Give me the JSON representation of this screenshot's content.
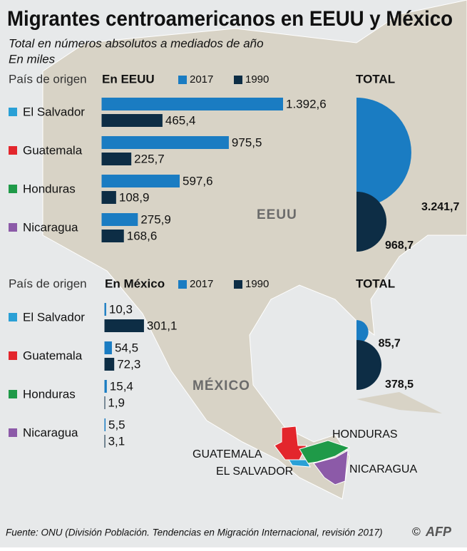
{
  "title": "Migrantes centroamericanos en EEUU y México",
  "subtitle": "Total en números absolutos a mediados de año",
  "unit": "En miles",
  "map_labels": [
    "EEUU",
    "MÉXICO",
    "HONDURAS",
    "GUATEMALA",
    "EL SALVADOR",
    "NICARAGUA"
  ],
  "source": "Fuente: ONU (División Población. Tendencias en Migración Internacional, revisión 2017)",
  "credit": "©",
  "logo": "AFP",
  "chart_data": [
    {
      "type": "bar",
      "orientation": "horizontal",
      "category_label": "País de origen",
      "title": "En EEUU",
      "categories": [
        "El Salvador",
        "Guatemala",
        "Honduras",
        "Nicaragua"
      ],
      "category_colors": [
        "#2aa0d6",
        "#e3262c",
        "#1f9a48",
        "#8c5aa8"
      ],
      "series": [
        {
          "name": "2017",
          "color": "#1a7cc2",
          "values": [
            1392.6,
            975.5,
            597.6,
            275.9
          ],
          "value_labels": [
            "1.392,6",
            "975,5",
            "597,6",
            "275,9"
          ]
        },
        {
          "name": "1990",
          "color": "#0d2d45",
          "values": [
            465.4,
            225.7,
            108.9,
            168.6
          ],
          "value_labels": [
            "465,4",
            "225,7",
            "108,9",
            "168,6"
          ]
        }
      ],
      "total": {
        "type": "half-circle",
        "title": "TOTAL",
        "values": [
          3241.7,
          968.7
        ],
        "value_labels": [
          "3.241,7",
          "968,7"
        ]
      }
    },
    {
      "type": "bar",
      "orientation": "horizontal",
      "category_label": "País de origen",
      "title": "En México",
      "categories": [
        "El Salvador",
        "Guatemala",
        "Honduras",
        "Nicaragua"
      ],
      "category_colors": [
        "#2aa0d6",
        "#e3262c",
        "#1f9a48",
        "#8c5aa8"
      ],
      "series": [
        {
          "name": "2017",
          "color": "#1a7cc2",
          "values": [
            10.3,
            54.5,
            15.4,
            5.5
          ],
          "value_labels": [
            "10,3",
            "54,5",
            "15,4",
            "5,5"
          ]
        },
        {
          "name": "1990",
          "color": "#0d2d45",
          "values": [
            301.1,
            72.3,
            1.9,
            3.1
          ],
          "value_labels": [
            "301,1",
            "72,3",
            "1,9",
            "3,1"
          ]
        }
      ],
      "total": {
        "type": "half-circle",
        "title": "TOTAL",
        "values": [
          85.7,
          378.5
        ],
        "value_labels": [
          "85,7",
          "378,5"
        ]
      }
    }
  ]
}
